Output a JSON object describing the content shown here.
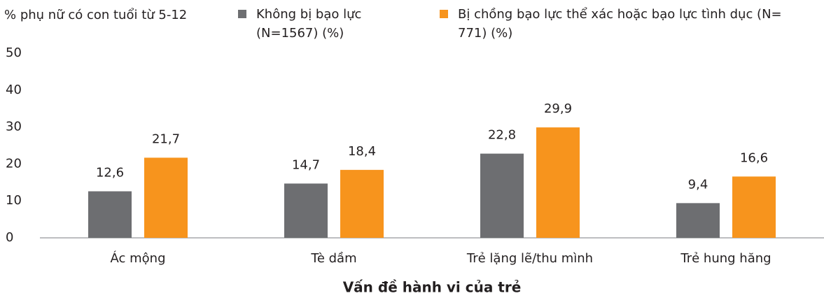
{
  "chart_data": {
    "type": "bar",
    "ylabel": "% phụ nữ có con tuổi từ 5-12",
    "xlabel": "Vấn đề hành vi của trẻ",
    "categories": [
      "Ác mộng",
      "Tè dầm",
      "Trẻ lặng lẽ/thu mình",
      "Trẻ hung hăng"
    ],
    "series": [
      {
        "name": "Không bị bạo lực (N=1567) (%)",
        "color": "#6d6e71",
        "values": [
          12.6,
          14.7,
          22.8,
          9.4
        ],
        "value_labels": [
          "12,6",
          "14,7",
          "22,8",
          "9,4"
        ]
      },
      {
        "name": "Bị chồng bạo lực thể xác hoặc bạo lực tình dục (N= 771) (%)",
        "color": "#f7941d",
        "values": [
          21.7,
          18.4,
          29.9,
          16.6
        ],
        "value_labels": [
          "21,7",
          "18,4",
          "29,9",
          "16,6"
        ]
      }
    ],
    "ylim": [
      0,
      50
    ],
    "yticks": [
      0,
      10,
      20,
      30,
      40,
      50
    ]
  }
}
